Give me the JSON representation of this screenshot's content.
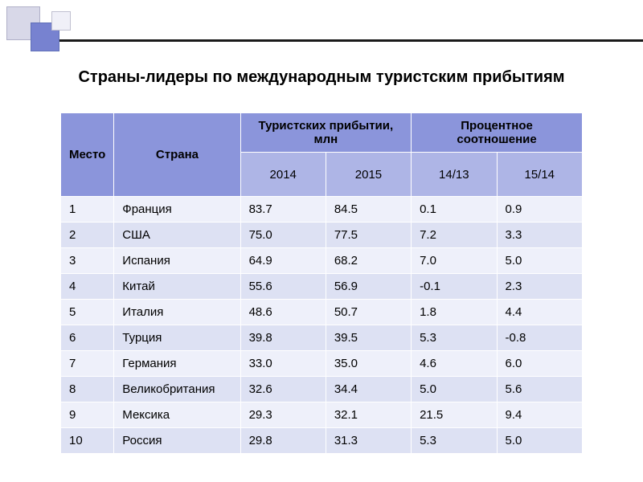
{
  "title": "Страны-лидеры по международным туристским прибытиям",
  "table": {
    "headers": {
      "rank": "Место",
      "country": "Страна",
      "arrivals_group": "Туристских прибытии, млн",
      "percent_group": "Процентное соотношение",
      "year1": "2014",
      "year2": "2015",
      "pct1": "14/13",
      "pct2": "15/14"
    },
    "rows": [
      {
        "rank": "1",
        "country": "Франция",
        "y1": "83.7",
        "y2": "84.5",
        "p1": "0.1",
        "p2": "0.9"
      },
      {
        "rank": "2",
        "country": "США",
        "y1": "75.0",
        "y2": "77.5",
        "p1": "7.2",
        "p2": "3.3"
      },
      {
        "rank": "3",
        "country": "Испания",
        "y1": "64.9",
        "y2": "68.2",
        "p1": "7.0",
        "p2": "5.0"
      },
      {
        "rank": "4",
        "country": "Китай",
        "y1": "55.6",
        "y2": "56.9",
        "p1": "-0.1",
        "p2": "2.3"
      },
      {
        "rank": "5",
        "country": "Италия",
        "y1": "48.6",
        "y2": "50.7",
        "p1": "1.8",
        "p2": "4.4"
      },
      {
        "rank": "6",
        "country": "Турция",
        "y1": "39.8",
        "y2": "39.5",
        "p1": "5.3",
        "p2": "-0.8"
      },
      {
        "rank": "7",
        "country": "Германия",
        "y1": "33.0",
        "y2": "35.0",
        "p1": "4.6",
        "p2": "6.0"
      },
      {
        "rank": "8",
        "country": "Великобритания",
        "y1": "32.6",
        "y2": "34.4",
        "p1": "5.0",
        "p2": "5.6"
      },
      {
        "rank": "9",
        "country": "Мексика",
        "y1": "29.3",
        "y2": "32.1",
        "p1": "21.5",
        "p2": "9.4"
      },
      {
        "rank": "10",
        "country": "Россия",
        "y1": "29.8",
        "y2": "31.3",
        "p1": "5.3",
        "p2": "5.0"
      }
    ]
  },
  "colors": {
    "header_top_bg": "#8b95db",
    "header_sub_bg": "#aeb5e6",
    "row_odd_bg": "#eef0fa",
    "row_even_bg": "#dde1f3",
    "divider": "#1a1a1a",
    "deco_sq1": "#d8d8e8",
    "deco_sq2": "#7782d0",
    "deco_sq3": "#f0f0f8"
  }
}
